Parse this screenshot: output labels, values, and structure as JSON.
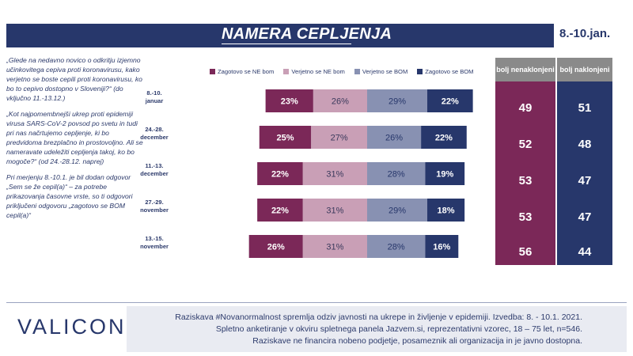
{
  "header": {
    "title": "NAMERA CEPLJENJA",
    "date_range": "8.-10.jan."
  },
  "intro": {
    "q1": "„Glede na nedavno novico o odkritju izjemno učinkovitega cepiva proti koronavirusu, kako verjetno se boste cepili proti koronavirusu, ko bo to cepivo dostopno v Sloveniji?“ (do vključno 11.-13.12.)",
    "q2": "„Kot najpomembnejši ukrep proti epidemiji virusa SARS-CoV-2 povsod po svetu in tudi pri nas načrtujemo cepljenje, ki bo predvidoma brezplačno in prostovoljno. Ali se nameravate udeležiti cepljenja takoj, ko bo mogoče?“ (od 24.-28.12. naprej)",
    "note": "Pri merjenju 8.-10.1. je bil dodan odgovor „Sem se že cepil(a)“ – za potrebe prikazovanja časovne vrste, so ti odgovori priključeni odgovoru „zagotovo se BOM cepil(a)“"
  },
  "legend": {
    "s1": "Zagotovo se NE bom",
    "s2": "Verjetno se NE bom",
    "s3": "Verjetno se BOM",
    "s4": "Zagotovo se BOM"
  },
  "columns": {
    "left_header": "bolj nenaklonjeni",
    "right_header": "bolj naklonjeni"
  },
  "rows": [
    {
      "label1": "8.-10.",
      "label2": "januar",
      "left": "49",
      "right": "51"
    },
    {
      "label1": "24.-28.",
      "label2": "december",
      "left": "52",
      "right": "48"
    },
    {
      "label1": "11.-13.",
      "label2": "december",
      "left": "53",
      "right": "47"
    },
    {
      "label1": "27.-29.",
      "label2": "november",
      "left": "53",
      "right": "47"
    },
    {
      "label1": "13.-15.",
      "label2": "november",
      "left": "56",
      "right": "44"
    }
  ],
  "colors": {
    "s1": "#7b2858",
    "s2": "#c99fb6",
    "s3": "#8891b2",
    "s4": "#27376b",
    "column_left": "#7b2858",
    "column_right": "#27376b",
    "header_bg": "#27376b"
  },
  "chart_data": {
    "type": "bar",
    "orientation": "horizontal",
    "stacked": true,
    "categories": [
      "8.-10. januar",
      "24.-28. december",
      "11.-13. december",
      "27.-29. november",
      "13.-15. november"
    ],
    "series": [
      {
        "name": "Zagotovo se NE bom",
        "values": [
          23,
          25,
          22,
          22,
          26
        ]
      },
      {
        "name": "Verjetno se NE bom",
        "values": [
          26,
          27,
          31,
          31,
          31
        ]
      },
      {
        "name": "Verjetno se BOM",
        "values": [
          29,
          26,
          28,
          29,
          28
        ]
      },
      {
        "name": "Zagotovo se BOM",
        "values": [
          22,
          22,
          19,
          18,
          16
        ]
      }
    ],
    "value_format": "{v}%",
    "title": "NAMERA CEPLJENJA",
    "legend_position": "top"
  },
  "footer": {
    "logo": "VALICON",
    "line1": "Raziskava #Novanormalnost spremlja odziv javnosti na ukrepe in življenje v epidemiji. Izvedba: 8. - 10.1. 2021.",
    "line2": "Spletno anketiranje v okviru spletnega panela Jazvem.si, reprezentativni vzorec, 18 – 75 let, n=546.",
    "line3": "Raziskave ne financira nobeno podjetje, posameznik ali organizacija in je javno dostopna."
  }
}
